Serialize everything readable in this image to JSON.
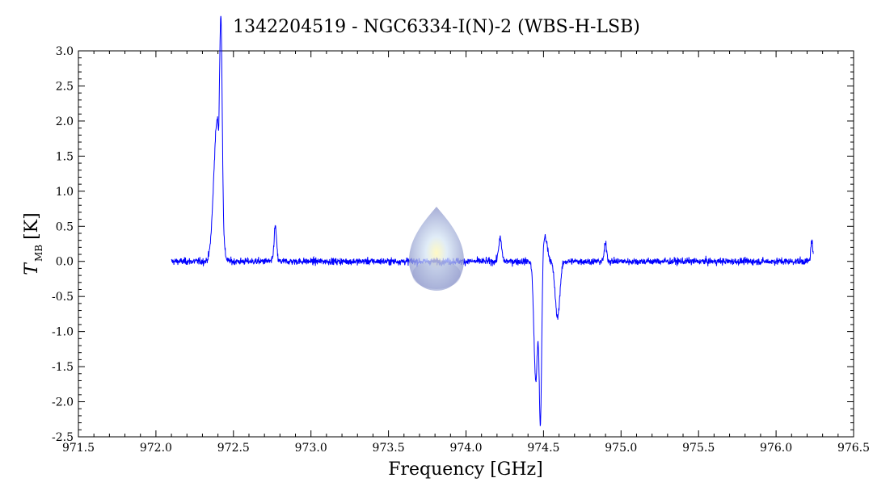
{
  "chart_data": {
    "type": "line",
    "title": "1342204519 - NGC6334-I(N)-2 (WBS-H-LSB)",
    "xlabel": "Frequency [GHz]",
    "ylabel": {
      "main": "T",
      "subscript": "MB",
      "unit": "[K]"
    },
    "xlim": [
      971.5,
      976.5
    ],
    "ylim": [
      -2.5,
      3.0
    ],
    "x_ticks": [
      "971.5",
      "972.0",
      "972.5",
      "973.0",
      "973.5",
      "974.0",
      "974.5",
      "975.0",
      "975.5",
      "976.0",
      "976.5"
    ],
    "y_ticks": [
      "3.0",
      "2.5",
      "2.0",
      "1.5",
      "1.0",
      "0.5",
      "0.0",
      "-0.5",
      "-1.0",
      "-1.5",
      "-2.0",
      "-2.5"
    ],
    "grid": false,
    "line_color": "#0000ff",
    "series": [
      {
        "x_range": [
          972.1,
          976.24
        ],
        "noise_rms": 0.035,
        "features": [
          {
            "type": "emission",
            "center": 972.395,
            "peak": 2.0,
            "width": 0.022
          },
          {
            "type": "emission",
            "center": 972.42,
            "peak": 2.4,
            "width": 0.008
          },
          {
            "type": "absorption",
            "center": 972.405,
            "peak": -0.3,
            "width": 0.003
          },
          {
            "type": "emission",
            "center": 972.77,
            "peak": 0.5,
            "width": 0.008
          },
          {
            "type": "emission",
            "center": 974.22,
            "peak": 0.32,
            "width": 0.01
          },
          {
            "type": "absorption",
            "center": 974.45,
            "peak": -1.7,
            "width": 0.012
          },
          {
            "type": "absorption",
            "center": 974.48,
            "peak": -2.3,
            "width": 0.008
          },
          {
            "type": "emission",
            "center": 974.51,
            "peak": 0.35,
            "width": 0.015
          },
          {
            "type": "absorption",
            "center": 974.59,
            "peak": -0.8,
            "width": 0.015
          },
          {
            "type": "emission",
            "center": 974.9,
            "peak": 0.25,
            "width": 0.008
          },
          {
            "type": "emission",
            "center": 976.23,
            "peak": 0.3,
            "width": 0.006
          }
        ]
      }
    ]
  },
  "logo": {
    "name": "water-drop-logo",
    "colors": [
      "#8a93c9",
      "#d6e6f5",
      "#fff7b0"
    ]
  }
}
